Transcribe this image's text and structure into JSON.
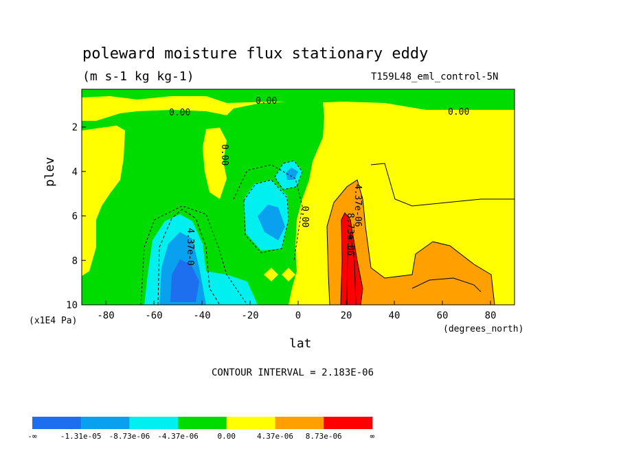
{
  "chart_data": {
    "type": "heatmap",
    "title": "poleward moisture flux stationary eddy",
    "subtitle": "(m s-1 kg kg-1)",
    "run_id": "T159L48_eml_control-5N",
    "xlabel": "lat",
    "x_units": "(degrees_north)",
    "ylabel": "plev",
    "y_units": "(x1E4 Pa)",
    "xlim": [
      -90,
      90
    ],
    "ylim": [
      10,
      0.3
    ],
    "x_ticks": [
      -80,
      -60,
      -40,
      -20,
      0,
      20,
      40,
      60,
      80
    ],
    "y_ticks": [
      2,
      4,
      6,
      8,
      10
    ],
    "contour_interval": "CONTOUR INTERVAL = 2.183E-06",
    "contour_labels": [
      "0.00",
      "0.00",
      "0.00",
      "0.00",
      "0.00",
      "4.37e-06",
      "8.73e-06",
      "4.37e-0"
    ],
    "colorbar": {
      "colors": [
        "#1e6ef0",
        "#0aa0f0",
        "#00f0f0",
        "#00dc00",
        "#ffff00",
        "#ffa000",
        "#ff0000"
      ],
      "labels": [
        "-∞",
        "-1.31e-05",
        "-8.73e-06",
        "-4.37e-06",
        "0.00",
        "4.37e-06",
        "8.73e-06",
        "∞"
      ]
    },
    "grid": false
  }
}
